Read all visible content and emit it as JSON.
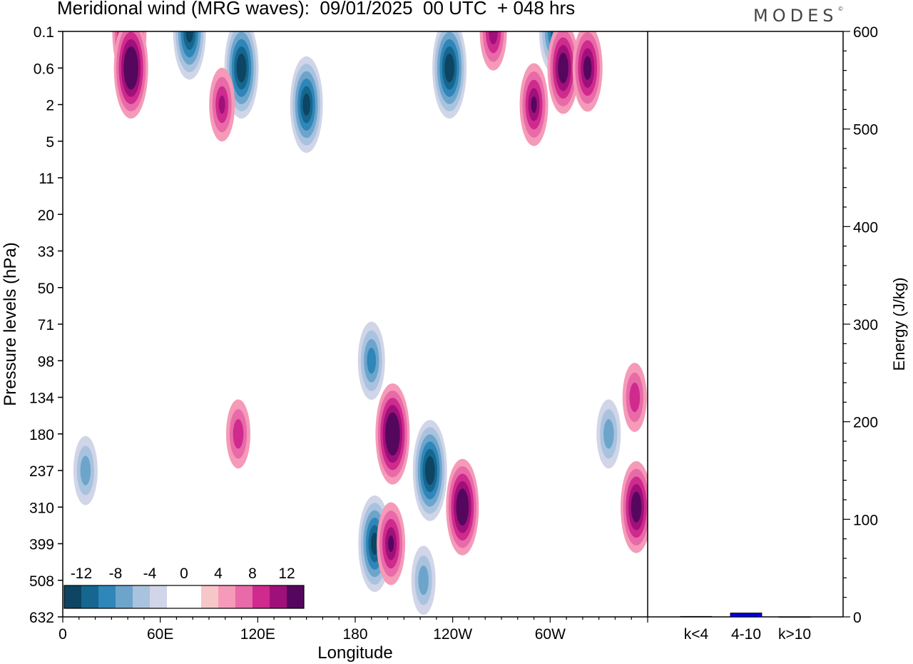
{
  "header": {
    "title": "Meridional wind (MRG waves):  09/01/2025  00 UTC  + 048 hrs",
    "brand": "MODES",
    "brand_mark": "©"
  },
  "colors": {
    "neg": [
      "#0d4563",
      "#15678f",
      "#2f86b8",
      "#6da4cc",
      "#a9c3df",
      "#d1d5e8"
    ],
    "pos": [
      "#f7c6c6",
      "#f59ab8",
      "#e86aa8",
      "#cf2a8d",
      "#a0107a",
      "#55075e"
    ],
    "energy_bar": "#0000e0"
  },
  "chart_data": [
    {
      "type": "heatmap",
      "title": "Meridional wind (MRG waves):  09/01/2025  00 UTC  + 048 hrs",
      "xlabel": "Longitude",
      "ylabel": "Pressure levels (hPa)",
      "x_ticks": [
        "0",
        "60E",
        "120E",
        "180",
        "120W",
        "60W"
      ],
      "y_ticks": [
        "0.1",
        "0.6",
        "2",
        "5",
        "11",
        "20",
        "33",
        "50",
        "71",
        "98",
        "134",
        "180",
        "237",
        "310",
        "399",
        "508",
        "632"
      ],
      "colorbar": {
        "levels": [
          -14,
          -12,
          -10,
          -8,
          -6,
          -4,
          -2,
          2,
          4,
          6,
          8,
          10,
          12,
          14
        ],
        "labels": [
          "-12",
          "-8",
          "-4",
          "0",
          "4",
          "8",
          "12"
        ]
      },
      "features": [
        {
          "lon": 192,
          "level": "399",
          "value": -13
        },
        {
          "lon": 190,
          "level": "98",
          "value": -9
        },
        {
          "lon": 203,
          "level": "180",
          "value": 14
        },
        {
          "lon": 202,
          "level": "399",
          "value": 10
        },
        {
          "lon": 226,
          "level": "237",
          "value": -14
        },
        {
          "lon": 246,
          "level": "310",
          "value": 13
        },
        {
          "lon": 222,
          "level": "508",
          "value": -7
        },
        {
          "lon": 108,
          "level": "180",
          "value": 7
        },
        {
          "lon": 14,
          "level": "237",
          "value": -7
        },
        {
          "lon": 41,
          "level": "0.1",
          "value": 14
        },
        {
          "lon": 42,
          "level": "0.6",
          "value": 14
        },
        {
          "lon": 78,
          "level": "0.1",
          "value": -13
        },
        {
          "lon": 110,
          "level": "0.6",
          "value": -14
        },
        {
          "lon": 150,
          "level": "2",
          "value": -13
        },
        {
          "lon": 265,
          "level": "0.1",
          "value": 9
        },
        {
          "lon": 238,
          "level": "0.6",
          "value": -14
        },
        {
          "lon": 302,
          "level": "0.1",
          "value": -10
        },
        {
          "lon": 308,
          "level": "0.6",
          "value": 12
        },
        {
          "lon": 323,
          "level": "0.6",
          "value": 11
        },
        {
          "lon": 290,
          "level": "2",
          "value": 10
        },
        {
          "lon": 98,
          "level": "2",
          "value": 8
        },
        {
          "lon": 353,
          "level": "310",
          "value": 12
        },
        {
          "lon": 352,
          "level": "134",
          "value": 7
        },
        {
          "lon": 336,
          "level": "180",
          "value": -7
        }
      ]
    },
    {
      "type": "bar",
      "ylabel": "Energy (J/kg)",
      "ylim": [
        0,
        600
      ],
      "categories": [
        "k<4",
        "4-10",
        "k>10"
      ],
      "values": [
        0.5,
        4,
        0
      ]
    }
  ]
}
